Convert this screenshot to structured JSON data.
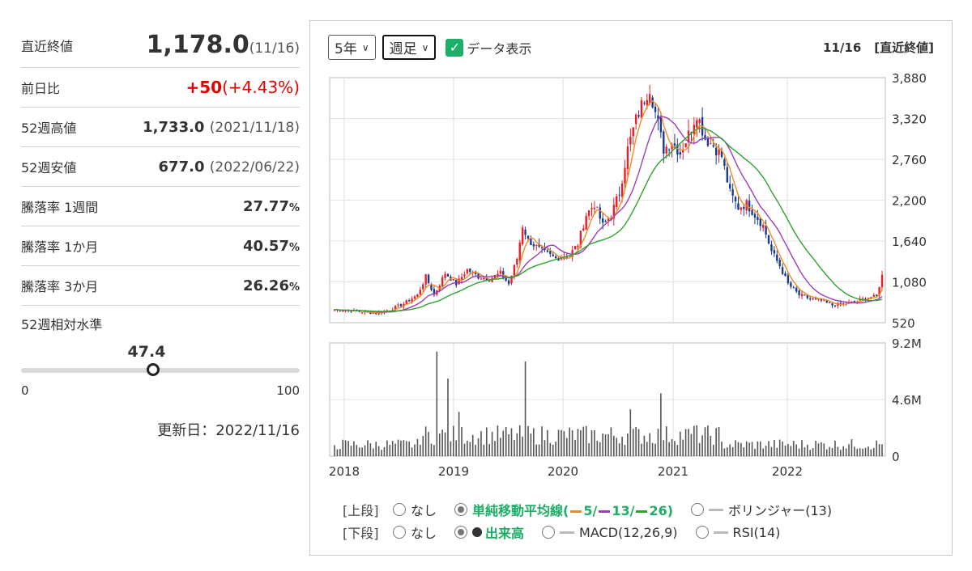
{
  "summary": {
    "close_label": "直近終値",
    "close_value": "1,178.0",
    "close_date": "(11/16)",
    "change_label": "前日比",
    "change_value": "+50",
    "change_pct": "(+4.43%)",
    "high52_label": "52週高値",
    "high52_value": "1,733.0",
    "high52_date": "(2021/11/18)",
    "low52_label": "52週安値",
    "low52_value": "677.0",
    "low52_date": "(2022/06/22)",
    "rate1w_label": "騰落率 1週間",
    "rate1w_value": "27.77",
    "rate1m_label": "騰落率 1か月",
    "rate1m_value": "40.57",
    "rate3m_label": "騰落率 3か月",
    "rate3m_value": "26.26",
    "pct_unit": "%",
    "level_label": "52週相対水準",
    "level_value": "47.4",
    "level_fraction": 0.474,
    "level_min": "0",
    "level_max": "100",
    "updated": "更新日：2022/11/16"
  },
  "controls": {
    "period": "5年",
    "interval": "週足",
    "data_toggle_label": "データ表示",
    "date": "11/16",
    "ref": "[直近終値]"
  },
  "legend": {
    "upper_tag": "[上段]",
    "lower_tag": "[下段]",
    "none": "なし",
    "sma_label": "単純移動平均線(",
    "sma5": "5/",
    "sma13": "13/",
    "sma26": "26)",
    "bollinger": "ボリンジャー(13)",
    "volume": "出来高",
    "macd": "MACD(12,26,9)",
    "rsi": "RSI(14)"
  },
  "colors": {
    "up": "#e8202a",
    "down": "#1a3a8f",
    "sma5": "#f08a20",
    "sma13": "#9b3db8",
    "sma26": "#2ea32e",
    "vol": "#555555"
  },
  "chart_data": {
    "type": "candlestick",
    "x_labels": [
      "2018",
      "2019",
      "2020",
      "2021",
      "2022"
    ],
    "price_ticks": [
      "3,880",
      "3,320",
      "2,760",
      "2,200",
      "1,640",
      "1,080",
      "520"
    ],
    "price_range": [
      520,
      3880
    ],
    "volume_ticks": [
      "9.2M",
      "4.6M",
      "0"
    ],
    "volume_range": [
      0,
      9200000
    ],
    "price_anchors": [
      [
        0,
        700
      ],
      [
        5,
        690
      ],
      [
        10,
        670
      ],
      [
        15,
        650
      ],
      [
        20,
        700
      ],
      [
        25,
        780
      ],
      [
        30,
        900
      ],
      [
        33,
        1150
      ],
      [
        36,
        900
      ],
      [
        40,
        1200
      ],
      [
        44,
        1050
      ],
      [
        48,
        1250
      ],
      [
        52,
        1150
      ],
      [
        56,
        1120
      ],
      [
        60,
        1200
      ],
      [
        63,
        1050
      ],
      [
        66,
        1400
      ],
      [
        68,
        1850
      ],
      [
        70,
        1650
      ],
      [
        75,
        1500
      ],
      [
        80,
        1400
      ],
      [
        85,
        1450
      ],
      [
        88,
        1600
      ],
      [
        91,
        2000
      ],
      [
        94,
        2150
      ],
      [
        97,
        1850
      ],
      [
        100,
        2000
      ],
      [
        103,
        2300
      ],
      [
        106,
        2900
      ],
      [
        109,
        3300
      ],
      [
        112,
        3600
      ],
      [
        114,
        3750
      ],
      [
        116,
        3400
      ],
      [
        119,
        2900
      ],
      [
        122,
        3000
      ],
      [
        125,
        2850
      ],
      [
        128,
        3100
      ],
      [
        131,
        3400
      ],
      [
        134,
        3050
      ],
      [
        137,
        2950
      ],
      [
        140,
        2800
      ],
      [
        143,
        2300
      ],
      [
        146,
        2100
      ],
      [
        149,
        2150
      ],
      [
        152,
        2000
      ],
      [
        155,
        1850
      ],
      [
        158,
        1500
      ],
      [
        161,
        1300
      ],
      [
        164,
        1050
      ],
      [
        168,
        900
      ],
      [
        172,
        850
      ],
      [
        176,
        820
      ],
      [
        180,
        760
      ],
      [
        184,
        780
      ],
      [
        188,
        800
      ],
      [
        192,
        860
      ],
      [
        196,
        880
      ],
      [
        198,
        1178
      ]
    ],
    "volume_spikes": [
      [
        37,
        8500000
      ],
      [
        41,
        6300000
      ],
      [
        45,
        3600000
      ],
      [
        69,
        7700000
      ],
      [
        107,
        3800000
      ],
      [
        118,
        5100000
      ],
      [
        131,
        2500000
      ]
    ]
  }
}
